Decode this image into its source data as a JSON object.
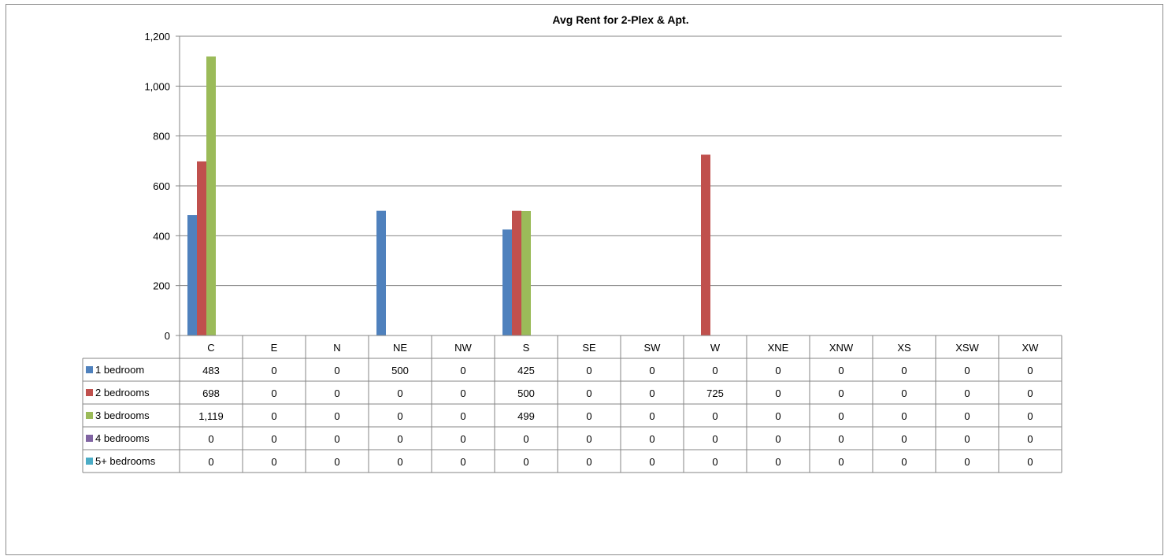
{
  "chart_data": {
    "type": "bar",
    "title": "Avg Rent for 2-Plex & Apt.",
    "xlabel": "",
    "ylabel": "",
    "ylim": [
      0,
      1200
    ],
    "yticks": [
      0,
      200,
      400,
      600,
      800,
      1000,
      1200
    ],
    "ytick_labels": [
      "0",
      "200",
      "400",
      "600",
      "800",
      "1,000",
      "1,200"
    ],
    "grid": true,
    "legend": "data-table",
    "categories": [
      "C",
      "E",
      "N",
      "NE",
      "NW",
      "S",
      "SE",
      "SW",
      "W",
      "XNE",
      "XNW",
      "XS",
      "XSW",
      "XW"
    ],
    "series": [
      {
        "name": "1 bedroom",
        "color": "#4F81BD",
        "values": [
          483,
          0,
          0,
          500,
          0,
          425,
          0,
          0,
          0,
          0,
          0,
          0,
          0,
          0
        ],
        "labels": [
          "483",
          "0",
          "0",
          "500",
          "0",
          "425",
          "0",
          "0",
          "0",
          "0",
          "0",
          "0",
          "0",
          "0"
        ]
      },
      {
        "name": "2 bedrooms",
        "color": "#C0504D",
        "values": [
          698,
          0,
          0,
          0,
          0,
          500,
          0,
          0,
          725,
          0,
          0,
          0,
          0,
          0
        ],
        "labels": [
          "698",
          "0",
          "0",
          "0",
          "0",
          "500",
          "0",
          "0",
          "725",
          "0",
          "0",
          "0",
          "0",
          "0"
        ]
      },
      {
        "name": "3 bedrooms",
        "color": "#9BBB59",
        "values": [
          1119,
          0,
          0,
          0,
          0,
          499,
          0,
          0,
          0,
          0,
          0,
          0,
          0,
          0
        ],
        "labels": [
          "1,119",
          "0",
          "0",
          "0",
          "0",
          "499",
          "0",
          "0",
          "0",
          "0",
          "0",
          "0",
          "0",
          "0"
        ]
      },
      {
        "name": "4 bedrooms",
        "color": "#8064A2",
        "values": [
          0,
          0,
          0,
          0,
          0,
          0,
          0,
          0,
          0,
          0,
          0,
          0,
          0,
          0
        ],
        "labels": [
          "0",
          "0",
          "0",
          "0",
          "0",
          "0",
          "0",
          "0",
          "0",
          "0",
          "0",
          "0",
          "0",
          "0"
        ]
      },
      {
        "name": "5+ bedrooms",
        "color": "#4BACC6",
        "values": [
          0,
          0,
          0,
          0,
          0,
          0,
          0,
          0,
          0,
          0,
          0,
          0,
          0,
          0
        ],
        "labels": [
          "0",
          "0",
          "0",
          "0",
          "0",
          "0",
          "0",
          "0",
          "0",
          "0",
          "0",
          "0",
          "0",
          "0"
        ]
      }
    ]
  }
}
